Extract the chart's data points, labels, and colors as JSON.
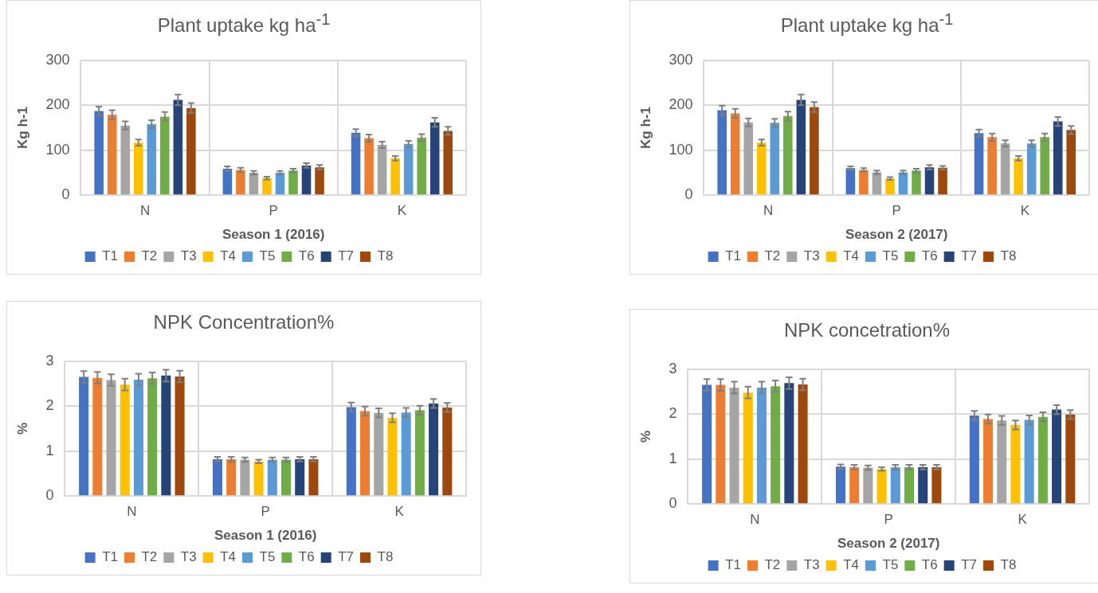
{
  "chart_data": [
    {
      "type": "bar",
      "title": "Plant uptake kg ha$^{-1}$",
      "xlabel": "Season 1 (2016)",
      "ylabel": "Kg h-1",
      "categories": [
        "N",
        "P",
        "K"
      ],
      "ylim": [
        0,
        300
      ],
      "yticks": [
        0,
        100,
        200,
        300
      ],
      "grid": true,
      "legend": "bottom",
      "series": [
        {
          "name": "T1",
          "color": "#4472c4",
          "values": [
            187,
            59,
            139
          ],
          "errors": [
            10,
            5,
            8
          ]
        },
        {
          "name": "T2",
          "color": "#ed7d31",
          "values": [
            179,
            56,
            127
          ],
          "errors": [
            10,
            5,
            8
          ]
        },
        {
          "name": "T3",
          "color": "#a5a5a5",
          "values": [
            155,
            50,
            112
          ],
          "errors": [
            9,
            4,
            7
          ]
        },
        {
          "name": "T4",
          "color": "#ffc000",
          "values": [
            117,
            38,
            82
          ],
          "errors": [
            7,
            3,
            5
          ]
        },
        {
          "name": "T5",
          "color": "#5b9bd5",
          "values": [
            158,
            50,
            114
          ],
          "errors": [
            9,
            4,
            7
          ]
        },
        {
          "name": "T6",
          "color": "#70ad47",
          "values": [
            175,
            55,
            128
          ],
          "errors": [
            10,
            4,
            8
          ]
        },
        {
          "name": "T7",
          "color": "#264478",
          "values": [
            212,
            66,
            162
          ],
          "errors": [
            12,
            5,
            10
          ]
        },
        {
          "name": "T8",
          "color": "#9e480e",
          "values": [
            194,
            62,
            143
          ],
          "errors": [
            11,
            5,
            9
          ]
        }
      ]
    },
    {
      "type": "bar",
      "title": "Plant uptake kg ha$^{-1}$",
      "xlabel": "Season 2 (2017)",
      "ylabel": "Kg h-1",
      "categories": [
        "N",
        "P",
        "K"
      ],
      "ylim": [
        0,
        300
      ],
      "yticks": [
        0,
        100,
        200,
        300
      ],
      "grid": true,
      "legend": "bottom",
      "series": [
        {
          "name": "T1",
          "color": "#4472c4",
          "values": [
            189,
            60,
            138
          ],
          "errors": [
            10,
            4,
            8
          ]
        },
        {
          "name": "T2",
          "color": "#ed7d31",
          "values": [
            182,
            56,
            129
          ],
          "errors": [
            10,
            4,
            8
          ]
        },
        {
          "name": "T3",
          "color": "#a5a5a5",
          "values": [
            162,
            51,
            115
          ],
          "errors": [
            9,
            4,
            7
          ]
        },
        {
          "name": "T4",
          "color": "#ffc000",
          "values": [
            117,
            37,
            82
          ],
          "errors": [
            7,
            3,
            5
          ]
        },
        {
          "name": "T5",
          "color": "#5b9bd5",
          "values": [
            161,
            51,
            115
          ],
          "errors": [
            9,
            4,
            7
          ]
        },
        {
          "name": "T6",
          "color": "#70ad47",
          "values": [
            176,
            55,
            129
          ],
          "errors": [
            10,
            4,
            8
          ]
        },
        {
          "name": "T7",
          "color": "#264478",
          "values": [
            212,
            62,
            164
          ],
          "errors": [
            12,
            5,
            10
          ]
        },
        {
          "name": "T8",
          "color": "#9e480e",
          "values": [
            196,
            61,
            145
          ],
          "errors": [
            11,
            4,
            9
          ]
        }
      ]
    },
    {
      "type": "bar",
      "title": "NPK Concentration%",
      "xlabel": "Season 1 (2016)",
      "ylabel": "%",
      "categories": [
        "N",
        "P",
        "K"
      ],
      "ylim": [
        0,
        3
      ],
      "yticks": [
        0,
        1,
        2,
        3
      ],
      "grid": true,
      "legend": "bottom",
      "series": [
        {
          "name": "T1",
          "color": "#4472c4",
          "values": [
            2.65,
            0.82,
            1.98
          ],
          "errors": [
            0.13,
            0.05,
            0.1
          ]
        },
        {
          "name": "T2",
          "color": "#ed7d31",
          "values": [
            2.63,
            0.82,
            1.89
          ],
          "errors": [
            0.13,
            0.05,
            0.1
          ]
        },
        {
          "name": "T3",
          "color": "#a5a5a5",
          "values": [
            2.58,
            0.81,
            1.85
          ],
          "errors": [
            0.13,
            0.05,
            0.1
          ]
        },
        {
          "name": "T4",
          "color": "#ffc000",
          "values": [
            2.48,
            0.77,
            1.74
          ],
          "errors": [
            0.13,
            0.04,
            0.1
          ]
        },
        {
          "name": "T5",
          "color": "#5b9bd5",
          "values": [
            2.59,
            0.81,
            1.86
          ],
          "errors": [
            0.13,
            0.05,
            0.1
          ]
        },
        {
          "name": "T6",
          "color": "#70ad47",
          "values": [
            2.62,
            0.81,
            1.91
          ],
          "errors": [
            0.13,
            0.05,
            0.1
          ]
        },
        {
          "name": "T7",
          "color": "#264478",
          "values": [
            2.68,
            0.82,
            2.06
          ],
          "errors": [
            0.13,
            0.05,
            0.1
          ]
        },
        {
          "name": "T8",
          "color": "#9e480e",
          "values": [
            2.66,
            0.82,
            1.97
          ],
          "errors": [
            0.13,
            0.05,
            0.1
          ]
        }
      ]
    },
    {
      "type": "bar",
      "title": "NPK concetration%",
      "xlabel": "Season 2 (2017)",
      "ylabel": "%",
      "categories": [
        "N",
        "P",
        "K"
      ],
      "ylim": [
        0,
        3
      ],
      "yticks": [
        0,
        1,
        2,
        3
      ],
      "grid": true,
      "legend": "bottom",
      "series": [
        {
          "name": "T1",
          "color": "#4472c4",
          "values": [
            2.65,
            0.83,
            1.97
          ],
          "errors": [
            0.13,
            0.05,
            0.1
          ]
        },
        {
          "name": "T2",
          "color": "#ed7d31",
          "values": [
            2.65,
            0.82,
            1.89
          ],
          "errors": [
            0.13,
            0.05,
            0.1
          ]
        },
        {
          "name": "T3",
          "color": "#a5a5a5",
          "values": [
            2.59,
            0.81,
            1.86
          ],
          "errors": [
            0.13,
            0.05,
            0.1
          ]
        },
        {
          "name": "T4",
          "color": "#ffc000",
          "values": [
            2.48,
            0.78,
            1.76
          ],
          "errors": [
            0.13,
            0.04,
            0.1
          ]
        },
        {
          "name": "T5",
          "color": "#5b9bd5",
          "values": [
            2.59,
            0.82,
            1.87
          ],
          "errors": [
            0.13,
            0.05,
            0.1
          ]
        },
        {
          "name": "T6",
          "color": "#70ad47",
          "values": [
            2.62,
            0.82,
            1.94
          ],
          "errors": [
            0.13,
            0.05,
            0.1
          ]
        },
        {
          "name": "T7",
          "color": "#264478",
          "values": [
            2.69,
            0.82,
            2.1
          ],
          "errors": [
            0.13,
            0.05,
            0.1
          ]
        },
        {
          "name": "T8",
          "color": "#9e480e",
          "values": [
            2.66,
            0.82,
            1.99
          ],
          "errors": [
            0.13,
            0.05,
            0.1
          ]
        }
      ]
    }
  ]
}
